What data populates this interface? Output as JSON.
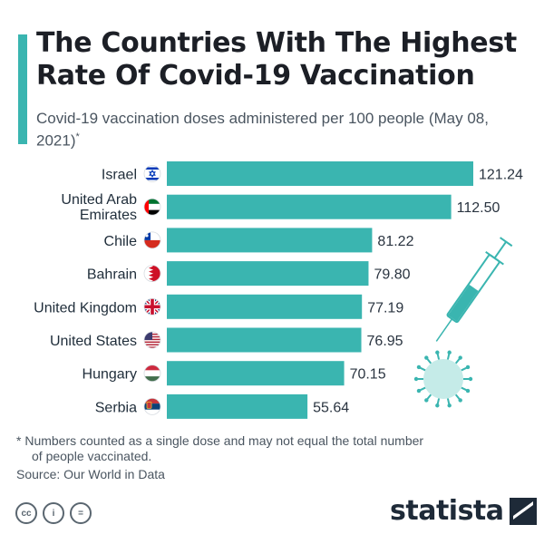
{
  "header": {
    "title": "The Countries With The Highest Rate Of Covid-19 Vaccination",
    "subtitle": "Covid-19 vaccination doses administered per 100 people (May 08, 2021)",
    "subtitle_mark": "*"
  },
  "chart_data": {
    "type": "bar",
    "orientation": "horizontal",
    "categories": [
      "Israel",
      "United Arab Emirates",
      "Chile",
      "Bahrain",
      "United Kingdom",
      "United States",
      "Hungary",
      "Serbia"
    ],
    "values": [
      121.24,
      112.5,
      81.22,
      79.8,
      77.19,
      76.95,
      70.15,
      55.64
    ],
    "value_labels": [
      "121.24",
      "112.50",
      "81.22",
      "79.80",
      "77.19",
      "76.95",
      "70.15",
      "55.64"
    ],
    "flags": [
      "israel-flag",
      "uae-flag",
      "chile-flag",
      "bahrain-flag",
      "uk-flag",
      "us-flag",
      "hungary-flag",
      "serbia-flag"
    ],
    "bar_color": "#3ab5b0",
    "grid": false,
    "legend": "none"
  },
  "footnote": {
    "line1": "* Numbers counted as a single dose and may not equal the total number",
    "line2": "of people vaccinated."
  },
  "source": "Source: Our World in Data",
  "brand": {
    "name": "statista",
    "icons": [
      "creative-commons-icon",
      "attribution-icon",
      "no-derivatives-icon",
      "syringe-virus-illustration"
    ],
    "cc_labels": [
      "cc",
      "i",
      "="
    ],
    "colors": {
      "accent": "#3ab5b0",
      "text": "#1c1f26",
      "logo": "#1e2a38"
    }
  }
}
